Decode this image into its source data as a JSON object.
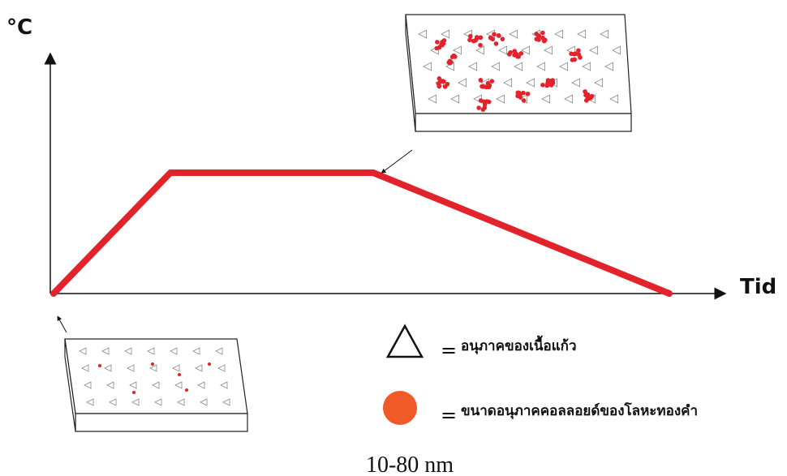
{
  "axis": {
    "y_label": "°C",
    "x_label": "Tid"
  },
  "legend": [
    {
      "equals": "=",
      "label": "อนุภาคของเนื้อแก้ว"
    },
    {
      "equals": "=",
      "label": "ขนาดอนุภาคคอลลอยด์ของโลหะทองคำ"
    }
  ],
  "caption": "10-80 nm"
}
